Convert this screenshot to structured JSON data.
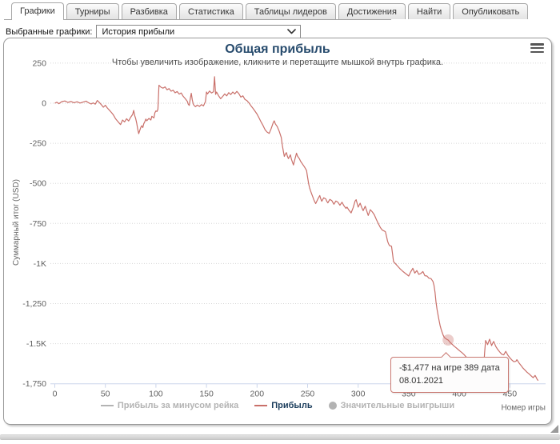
{
  "tabs": {
    "items": [
      {
        "label": "Графики",
        "active": true
      },
      {
        "label": "Турниры",
        "active": false
      },
      {
        "label": "Разбивка",
        "active": false
      },
      {
        "label": "Статистика",
        "active": false
      },
      {
        "label": "Таблицы лидеров",
        "active": false
      },
      {
        "label": "Достижения",
        "active": false
      },
      {
        "label": "Найти",
        "active": false
      },
      {
        "label": "Опубликовать",
        "active": false
      }
    ]
  },
  "selector": {
    "label": "Выбранные графики:",
    "value": "История прибыли",
    "arrow_icon": "chevron-down-icon"
  },
  "chart": {
    "title": "Общая прибыль",
    "subtitle": "Чтобы увеличить изображение, кликните и перетащите мышкой внутрь графика.",
    "menu_icon": "hamburger-icon"
  },
  "colors": {
    "series": "#c9706a",
    "title": "#274b6d",
    "grid": "#d6d6d6",
    "axis_line": "#ccd6eb",
    "axis_label": "#606060",
    "axis_title": "#666666",
    "legend_active_text": "#1b3d5c",
    "legend_disabled": "#b3b3b3",
    "marker_halo": "rgba(201,112,106,0.35)"
  },
  "tooltip": {
    "line1": "-$1,477 на игре 389 дата",
    "line2": "08.01.2021"
  },
  "chart_data": {
    "type": "line",
    "title": "Общая прибыль",
    "subtitle": "Чтобы увеличить изображение, кликните и перетащите мышкой внутрь графика.",
    "xlabel": "Номер игры",
    "ylabel": "Суммарный итог (USD)",
    "xlim": [
      0,
      485
    ],
    "ylim": [
      -1750,
      250
    ],
    "x_ticks": [
      0,
      50,
      100,
      150,
      200,
      250,
      300,
      350,
      400,
      450
    ],
    "y_ticks": [
      {
        "v": 250,
        "label": "250"
      },
      {
        "v": 0,
        "label": "0"
      },
      {
        "v": -250,
        "label": "-250"
      },
      {
        "v": -500,
        "label": "-500"
      },
      {
        "v": -750,
        "label": "-750"
      },
      {
        "v": -1000,
        "label": "-1K"
      },
      {
        "v": -1250,
        "label": "-1,250"
      },
      {
        "v": -1500,
        "label": "-1.5K"
      },
      {
        "v": -1750,
        "label": "-1,750"
      }
    ],
    "grid": "dotted",
    "legend_position": "bottom-center",
    "legend": [
      {
        "label": "Прибыль за минусом рейка",
        "swatch": "line",
        "enabled": false
      },
      {
        "label": "Прибыль",
        "swatch": "line",
        "enabled": true
      },
      {
        "label": "Значительные выигрыши",
        "swatch": "circle",
        "enabled": false
      }
    ],
    "highlighted_point": {
      "x": 389,
      "y": -1477,
      "date": "08.01.2021"
    },
    "series": [
      {
        "name": "Прибыль за минусом рейка",
        "visible": false,
        "points": []
      },
      {
        "name": "Прибыль",
        "visible": true,
        "points": [
          [
            0,
            0
          ],
          [
            2,
            6
          ],
          [
            4,
            -3
          ],
          [
            7,
            10
          ],
          [
            10,
            14
          ],
          [
            13,
            5
          ],
          [
            16,
            11
          ],
          [
            19,
            3
          ],
          [
            22,
            9
          ],
          [
            25,
            1
          ],
          [
            28,
            7
          ],
          [
            31,
            13
          ],
          [
            33,
            4
          ],
          [
            36,
            -5
          ],
          [
            38,
            2
          ],
          [
            40,
            -6
          ],
          [
            42,
            17
          ],
          [
            44,
            5
          ],
          [
            46,
            -9
          ],
          [
            48,
            -25
          ],
          [
            50,
            -13
          ],
          [
            52,
            -30
          ],
          [
            54,
            -44
          ],
          [
            56,
            -58
          ],
          [
            58,
            -74
          ],
          [
            60,
            -96
          ],
          [
            62,
            -112
          ],
          [
            64,
            -126
          ],
          [
            65,
            -133
          ],
          [
            67,
            -105
          ],
          [
            69,
            -117
          ],
          [
            71,
            -97
          ],
          [
            73,
            -111
          ],
          [
            75,
            -88
          ],
          [
            77,
            -70
          ],
          [
            78,
            -45
          ],
          [
            79,
            -78
          ],
          [
            80,
            -96
          ],
          [
            81,
            -125
          ],
          [
            82,
            -160
          ],
          [
            83,
            -190
          ],
          [
            84,
            -170
          ],
          [
            85,
            -152
          ],
          [
            86,
            -140
          ],
          [
            87,
            -152
          ],
          [
            88,
            -128
          ],
          [
            89,
            -116
          ],
          [
            90,
            -99
          ],
          [
            91,
            -110
          ],
          [
            93,
            -95
          ],
          [
            95,
            -105
          ],
          [
            96,
            -82
          ],
          [
            98,
            -92
          ],
          [
            99,
            -60
          ],
          [
            100,
            -48
          ],
          [
            101,
            -52
          ],
          [
            102,
            -38
          ],
          [
            103,
            112
          ],
          [
            105,
            100
          ],
          [
            107,
            94
          ],
          [
            109,
            102
          ],
          [
            111,
            84
          ],
          [
            113,
            91
          ],
          [
            115,
            75
          ],
          [
            117,
            81
          ],
          [
            119,
            65
          ],
          [
            121,
            73
          ],
          [
            123,
            57
          ],
          [
            125,
            64
          ],
          [
            127,
            43
          ],
          [
            129,
            28
          ],
          [
            131,
            12
          ],
          [
            132,
            -6
          ],
          [
            133,
            -14
          ],
          [
            134,
            30
          ],
          [
            135,
            62
          ],
          [
            136,
            20
          ],
          [
            137,
            -8
          ],
          [
            139,
            -22
          ],
          [
            141,
            -12
          ],
          [
            143,
            -20
          ],
          [
            145,
            -9
          ],
          [
            147,
            -17
          ],
          [
            149,
            10
          ],
          [
            150,
            70
          ],
          [
            151,
            58
          ],
          [
            153,
            76
          ],
          [
            155,
            64
          ],
          [
            157,
            72
          ],
          [
            158,
            165
          ],
          [
            159,
            55
          ],
          [
            160,
            70
          ],
          [
            162,
            46
          ],
          [
            164,
            28
          ],
          [
            166,
            42
          ],
          [
            168,
            58
          ],
          [
            170,
            46
          ],
          [
            172,
            66
          ],
          [
            174,
            54
          ],
          [
            176,
            70
          ],
          [
            178,
            58
          ],
          [
            180,
            74
          ],
          [
            182,
            60
          ],
          [
            184,
            38
          ],
          [
            186,
            46
          ],
          [
            188,
            24
          ],
          [
            190,
            16
          ],
          [
            192,
            2
          ],
          [
            194,
            -16
          ],
          [
            196,
            -32
          ],
          [
            198,
            -50
          ],
          [
            200,
            -68
          ],
          [
            202,
            -92
          ],
          [
            204,
            -118
          ],
          [
            206,
            -140
          ],
          [
            208,
            -166
          ],
          [
            210,
            -180
          ],
          [
            212,
            -188
          ],
          [
            214,
            -158
          ],
          [
            216,
            -122
          ],
          [
            217,
            -110
          ],
          [
            218,
            -128
          ],
          [
            220,
            -146
          ],
          [
            222,
            -176
          ],
          [
            224,
            -214
          ],
          [
            225,
            -262
          ],
          [
            226,
            -300
          ],
          [
            227,
            -332
          ],
          [
            228,
            -318
          ],
          [
            229,
            -308
          ],
          [
            230,
            -330
          ],
          [
            231,
            -346
          ],
          [
            233,
            -322
          ],
          [
            234,
            -350
          ],
          [
            236,
            -385
          ],
          [
            237,
            -360
          ],
          [
            239,
            -312
          ],
          [
            240,
            -330
          ],
          [
            242,
            -348
          ],
          [
            243,
            -362
          ],
          [
            245,
            -380
          ],
          [
            247,
            -398
          ],
          [
            249,
            -420
          ],
          [
            250,
            -462
          ],
          [
            251,
            -502
          ],
          [
            252,
            -528
          ],
          [
            253,
            -548
          ],
          [
            254,
            -566
          ],
          [
            255,
            -582
          ],
          [
            256,
            -600
          ],
          [
            257,
            -614
          ],
          [
            258,
            -626
          ],
          [
            260,
            -600
          ],
          [
            262,
            -576
          ],
          [
            263,
            -596
          ],
          [
            264,
            -612
          ],
          [
            266,
            -590
          ],
          [
            268,
            -598
          ],
          [
            269,
            -612
          ],
          [
            270,
            -622
          ],
          [
            272,
            -600
          ],
          [
            274,
            -608
          ],
          [
            276,
            -630
          ],
          [
            278,
            -610
          ],
          [
            280,
            -618
          ],
          [
            282,
            -636
          ],
          [
            284,
            -618
          ],
          [
            286,
            -640
          ],
          [
            288,
            -656
          ],
          [
            289,
            -648
          ],
          [
            291,
            -668
          ],
          [
            293,
            -684
          ],
          [
            295,
            -652
          ],
          [
            297,
            -610
          ],
          [
            298,
            -602
          ],
          [
            300,
            -648
          ],
          [
            302,
            -624
          ],
          [
            304,
            -658
          ],
          [
            305,
            -670
          ],
          [
            307,
            -642
          ],
          [
            309,
            -682
          ],
          [
            310,
            -700
          ],
          [
            312,
            -664
          ],
          [
            314,
            -678
          ],
          [
            316,
            -696
          ],
          [
            318,
            -726
          ],
          [
            320,
            -752
          ],
          [
            322,
            -776
          ],
          [
            324,
            -792
          ],
          [
            326,
            -798
          ],
          [
            327,
            -802
          ],
          [
            328,
            -830
          ],
          [
            329,
            -860
          ],
          [
            330,
            -876
          ],
          [
            331,
            -888
          ],
          [
            333,
            -892
          ],
          [
            334,
            -940
          ],
          [
            335,
            -988
          ],
          [
            337,
            -1002
          ],
          [
            339,
            -1016
          ],
          [
            341,
            -1030
          ],
          [
            344,
            -1048
          ],
          [
            346,
            -1058
          ],
          [
            348,
            -1068
          ],
          [
            350,
            -1078
          ],
          [
            352,
            -1052
          ],
          [
            354,
            -1030
          ],
          [
            356,
            -1060
          ],
          [
            358,
            -1044
          ],
          [
            360,
            -1068
          ],
          [
            362,
            -1062
          ],
          [
            364,
            -1050
          ],
          [
            366,
            -1076
          ],
          [
            368,
            -1078
          ],
          [
            370,
            -1092
          ],
          [
            372,
            -1094
          ],
          [
            374,
            -1112
          ],
          [
            375,
            -1136
          ],
          [
            376,
            -1180
          ],
          [
            377,
            -1240
          ],
          [
            378,
            -1286
          ],
          [
            379,
            -1322
          ],
          [
            380,
            -1354
          ],
          [
            381,
            -1386
          ],
          [
            382,
            -1408
          ],
          [
            383,
            -1428
          ],
          [
            384,
            -1446
          ],
          [
            385,
            -1458
          ],
          [
            386,
            -1466
          ],
          [
            388,
            -1474
          ],
          [
            389,
            -1477
          ],
          [
            391,
            -1492
          ],
          [
            393,
            -1504
          ],
          [
            395,
            -1516
          ],
          [
            397,
            -1526
          ],
          [
            399,
            -1537
          ],
          [
            401,
            -1548
          ],
          [
            403,
            -1558
          ],
          [
            405,
            -1570
          ],
          [
            407,
            -1584
          ],
          [
            409,
            -1600
          ],
          [
            411,
            -1608
          ],
          [
            413,
            -1618
          ],
          [
            415,
            -1628
          ],
          [
            417,
            -1642
          ],
          [
            419,
            -1652
          ],
          [
            421,
            -1660
          ],
          [
            423,
            -1666
          ],
          [
            424,
            -1668
          ],
          [
            425,
            -1560
          ],
          [
            426,
            -1480
          ],
          [
            427,
            -1492
          ],
          [
            428,
            -1506
          ],
          [
            429,
            -1488
          ],
          [
            430,
            -1472
          ],
          [
            431,
            -1492
          ],
          [
            432,
            -1512
          ],
          [
            433,
            -1498
          ],
          [
            434,
            -1486
          ],
          [
            435,
            -1500
          ],
          [
            436,
            -1516
          ],
          [
            438,
            -1536
          ],
          [
            440,
            -1552
          ],
          [
            442,
            -1566
          ],
          [
            444,
            -1570
          ],
          [
            445,
            -1558
          ],
          [
            446,
            -1548
          ],
          [
            448,
            -1572
          ],
          [
            450,
            -1588
          ],
          [
            452,
            -1602
          ],
          [
            454,
            -1613
          ],
          [
            456,
            -1610
          ],
          [
            457,
            -1600
          ],
          [
            459,
            -1620
          ],
          [
            461,
            -1635
          ],
          [
            463,
            -1652
          ],
          [
            465,
            -1665
          ],
          [
            467,
            -1678
          ],
          [
            469,
            -1688
          ],
          [
            471,
            -1700
          ],
          [
            473,
            -1712
          ],
          [
            474,
            -1705
          ],
          [
            475,
            -1698
          ],
          [
            476,
            -1710
          ],
          [
            477,
            -1722
          ],
          [
            478,
            -1730
          ]
        ]
      },
      {
        "name": "Значительные выигрыши",
        "visible": false,
        "points": []
      }
    ]
  }
}
